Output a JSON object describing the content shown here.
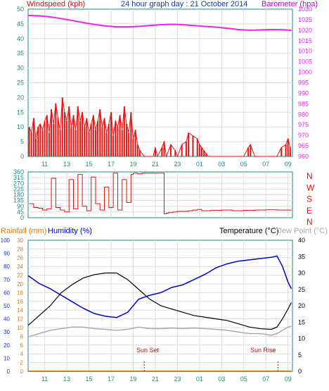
{
  "colors": {
    "title": "#1a3a9a",
    "wind_label": "#cc1111",
    "baro_label": "#cc00cc",
    "axis": "#1a8a8a",
    "grid": "#dcdcdc",
    "wind": "#ee1111",
    "wind_green": "#118811",
    "wind_blue": "#1111cc",
    "pressure": "#ee22ee",
    "direction": "#dd1111",
    "rain_label": "#ee7700",
    "humidity_label": "#0000cc",
    "rain_axis": "#ee7700",
    "humidity_axis": "#1a3aaa",
    "temperature": "#000000",
    "humidity": "#0000cc",
    "dewpoint": "#aaaaaa",
    "rainfall": "#ee7700",
    "sun_event": "#aa1111"
  },
  "header": {
    "left_label": "Windspeed (kph)",
    "title": "24 hour graph day : 21 October 2014",
    "right_label": "Barometer (hpa)"
  },
  "x_ticks": [
    "11",
    "13",
    "15",
    "17",
    "19",
    "21",
    "23",
    "01",
    "03",
    "05",
    "07",
    "09"
  ],
  "chart_data": [
    {
      "type": "line",
      "title": "24 hour graph day : 21 October 2014",
      "x_tick_labels": [
        "11",
        "13",
        "15",
        "17",
        "19",
        "21",
        "23",
        "01",
        "03",
        "05",
        "07",
        "09"
      ],
      "x_range_hours": [
        9.5,
        33.4
      ],
      "left_axis": {
        "label": "Windspeed (kph)",
        "range": [
          0,
          50
        ],
        "ticks": [
          0,
          5,
          10,
          15,
          20,
          25,
          30,
          35,
          40,
          45,
          50
        ]
      },
      "right_axis": {
        "label": "Barometer (hpa)",
        "range": [
          960,
          1030
        ],
        "ticks": [
          960,
          965,
          970,
          975,
          980,
          985,
          990,
          995,
          1000,
          1005,
          1010,
          1015,
          1020,
          1025,
          1030
        ]
      },
      "grid": true,
      "series": [
        {
          "axis": "left",
          "x": [
            9.6,
            9.8,
            10.0,
            10.2,
            10.4,
            10.6,
            10.8,
            11.0,
            11.2,
            11.4,
            11.6,
            11.8,
            12.0,
            12.2,
            12.4,
            12.6,
            12.8,
            13.0,
            13.2,
            13.4,
            13.6,
            13.8,
            14.0,
            14.2,
            14.4,
            14.6,
            14.8,
            15.0,
            15.2,
            15.4,
            15.6,
            15.8,
            16.0,
            16.2,
            16.4,
            16.6,
            16.8,
            17.0,
            17.2,
            17.4,
            17.6,
            17.8,
            18.0,
            18.2,
            18.4,
            18.6,
            18.8,
            19.0,
            19.2,
            19.4,
            19.6,
            20.0,
            20.4,
            20.8,
            21.0,
            21.2,
            21.6,
            21.8,
            22.0,
            22.4,
            22.8,
            23.0,
            23.4,
            23.8,
            24.0,
            24.4,
            24.8,
            25.0,
            25.2,
            25.4,
            25.6,
            25.8,
            26.0,
            26.4,
            27.0,
            28.0,
            29.0,
            29.4,
            29.6,
            30.0,
            31.0,
            32.0,
            32.4,
            32.8,
            33.0,
            33.2
          ],
          "values": [
            10,
            8,
            13,
            6,
            10,
            11,
            9,
            12,
            14,
            8,
            16,
            11,
            18,
            13,
            9,
            20,
            15,
            12,
            17,
            10,
            14,
            9,
            17,
            12,
            15,
            10,
            13,
            8,
            11,
            14,
            9,
            12,
            16,
            10,
            13,
            8,
            11,
            15,
            7,
            12,
            10,
            14,
            9,
            17,
            11,
            8,
            15,
            6,
            9,
            4,
            2,
            0,
            0,
            0,
            3,
            0,
            3,
            5,
            0,
            4,
            2,
            0,
            4,
            5,
            8,
            7,
            6,
            4,
            3,
            2,
            1,
            0,
            0,
            0,
            0,
            0,
            0,
            3,
            4,
            0,
            0,
            0,
            3,
            4,
            6,
            3
          ]
        },
        {
          "axis": "right",
          "x": [
            9.5,
            10.5,
            11.5,
            12.5,
            13.5,
            14.5,
            15.5,
            16.5,
            17.5,
            18.5,
            19.5,
            20.5,
            21.5,
            22.5,
            23.5,
            24.5,
            25.5,
            26.5,
            27.5,
            28.5,
            29.5,
            30.5,
            31.5,
            32.5,
            33.3
          ],
          "values": [
            1027,
            1026.8,
            1026.3,
            1025.5,
            1024.6,
            1023.6,
            1022.7,
            1022.0,
            1021.6,
            1021.6,
            1021.8,
            1022.2,
            1022.6,
            1022.8,
            1022.6,
            1022.2,
            1021.8,
            1021.4,
            1020.9,
            1020.3,
            1020.0,
            1020.1,
            1020.3,
            1020.2,
            1019.9
          ]
        }
      ]
    },
    {
      "type": "line",
      "x_tick_labels": [],
      "x_range_hours": [
        9.5,
        33.4
      ],
      "left_axis": {
        "range": [
          0,
          360
        ],
        "ticks": [
          0,
          45,
          90,
          135,
          180,
          225,
          270,
          315,
          360
        ]
      },
      "right_axis": {
        "ticks": [
          "N",
          "W",
          "S",
          "E",
          "N"
        ]
      },
      "grid": true,
      "series": [
        {
          "axis": "left",
          "x": [
            9.6,
            10.0,
            10.4,
            10.8,
            11.2,
            11.6,
            12.0,
            12.4,
            12.8,
            13.2,
            13.6,
            14.0,
            14.4,
            14.8,
            15.2,
            15.6,
            16.0,
            16.4,
            16.8,
            17.2,
            17.6,
            18.0,
            18.4,
            18.8,
            19.0,
            19.4,
            19.8,
            20.4,
            21.0,
            21.6,
            21.8,
            22.0,
            22.2,
            22.6,
            23.0,
            24.0,
            24.4,
            24.8,
            25.2,
            26.0,
            27.0,
            28.0,
            29.0,
            30.0,
            31.0,
            32.0,
            33.0,
            33.3
          ],
          "values": [
            110,
            80,
            75,
            60,
            70,
            310,
            80,
            60,
            45,
            300,
            70,
            340,
            90,
            55,
            320,
            110,
            60,
            240,
            80,
            350,
            60,
            300,
            120,
            340,
            350,
            345,
            350,
            350,
            350,
            350,
            30,
            35,
            40,
            45,
            50,
            55,
            60,
            65,
            55,
            58,
            60,
            55,
            58,
            60,
            62,
            60,
            60,
            58
          ]
        }
      ]
    },
    {
      "type": "line",
      "x_tick_labels": [
        "11",
        "13",
        "15",
        "17",
        "19",
        "21",
        "23",
        "01",
        "03",
        "05",
        "07",
        "09"
      ],
      "x_range_hours": [
        9.5,
        33.4
      ],
      "axes": {
        "humidity": {
          "label": "Humidity (%)",
          "range": [
            0,
            100
          ],
          "ticks": [
            0,
            10,
            20,
            30,
            40,
            50,
            60,
            70,
            80,
            90,
            100
          ]
        },
        "rainfall": {
          "label": "Rainfall (mm)",
          "range": [
            0,
            30
          ],
          "ticks": [
            0,
            2,
            4,
            6,
            8,
            10,
            12,
            14,
            16,
            18,
            20,
            22,
            24,
            26,
            28,
            30
          ]
        },
        "temperature": {
          "label": "Temperature (°C)",
          "range": [
            0,
            40
          ],
          "ticks": [
            0,
            5,
            10,
            15,
            20,
            25,
            30,
            35,
            40
          ]
        },
        "dewpoint": {
          "label": "Dew Point (°C)"
        }
      },
      "annotations": [
        {
          "text": "Sun Set",
          "x": 20.0
        },
        {
          "text": "Sun Rise",
          "x": 32.1
        }
      ],
      "grid": true,
      "series": [
        {
          "axis": "temperature",
          "x": [
            9.5,
            10.5,
            11.5,
            12.5,
            13.5,
            14.5,
            15.5,
            16.5,
            17.5,
            18.5,
            19.5,
            20.5,
            21.5,
            22.5,
            23.5,
            24.5,
            25.5,
            26.5,
            27.5,
            28.5,
            29.5,
            30.5,
            31.5,
            32.0,
            32.5,
            33.0,
            33.3
          ],
          "values": [
            14,
            17,
            20,
            24,
            26.5,
            28.5,
            29.5,
            30,
            30,
            28,
            25,
            22,
            20,
            19,
            18,
            17,
            16.5,
            16,
            15.5,
            14.5,
            13.5,
            13,
            12.8,
            13.5,
            16,
            19,
            21
          ]
        },
        {
          "axis": "humidity",
          "x": [
            9.5,
            10.5,
            11.5,
            12.5,
            13.5,
            14.5,
            15.5,
            16.5,
            17.5,
            18.5,
            19.5,
            20.5,
            21.5,
            22.5,
            23.5,
            24.5,
            25.5,
            26.5,
            27.5,
            28.5,
            29.5,
            30.5,
            31.5,
            32.0,
            32.5,
            33.0,
            33.3
          ],
          "values": [
            73,
            67,
            63,
            58,
            53,
            48,
            44,
            42,
            41,
            45,
            55,
            58,
            60,
            64,
            66,
            70,
            74,
            79,
            82,
            84,
            85,
            86,
            87,
            88,
            80,
            68,
            63
          ]
        },
        {
          "axis": "temperature",
          "x": [
            9.5,
            10.5,
            11.5,
            12.5,
            13.5,
            14.5,
            15.5,
            16.5,
            17.5,
            18.5,
            19.5,
            20.5,
            21.5,
            22.5,
            23.5,
            24.5,
            25.5,
            26.5,
            27.5,
            28.5,
            29.5,
            30.5,
            31.5,
            32.0,
            32.5,
            33.0,
            33.3
          ],
          "values": [
            10.5,
            11.5,
            12.5,
            13,
            13.5,
            13.5,
            13,
            12.8,
            12.5,
            12.8,
            13.5,
            13,
            13,
            13.2,
            13,
            13.2,
            13,
            12.8,
            12.5,
            12,
            11.5,
            11.5,
            11,
            11.5,
            12.5,
            13.5,
            13.8
          ]
        },
        {
          "axis": "rainfall",
          "x": [
            9.5,
            33.3
          ],
          "values": [
            0,
            0
          ]
        }
      ]
    }
  ],
  "labels": {
    "rainfall": "Rainfall (mm)",
    "humidity": "Humidity (%)",
    "temperature": "Temperature (°C)",
    "dewpoint": "Dew Point (°C)"
  }
}
